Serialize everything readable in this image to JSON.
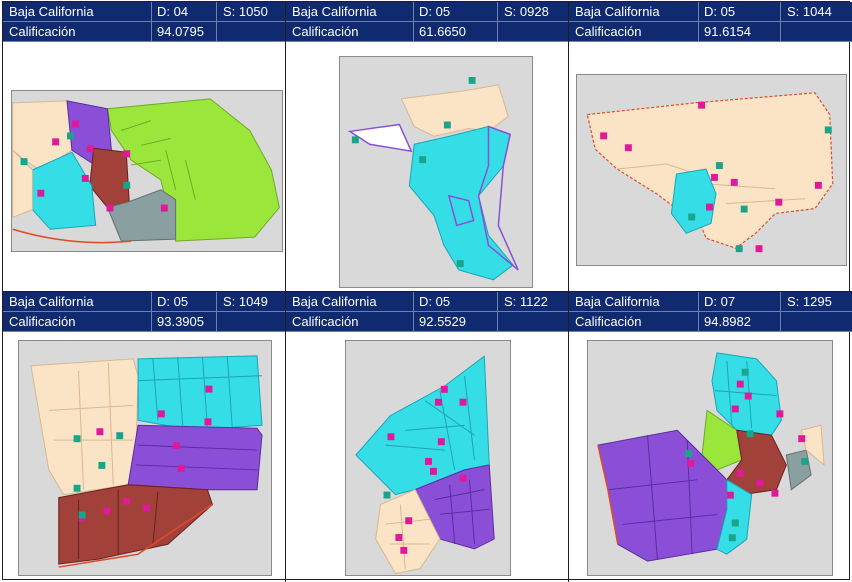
{
  "cards": [
    {
      "state": "Baja California",
      "district": "D: 04",
      "section": "S: 1050",
      "score_label": "Calificación",
      "score": "94.0795"
    },
    {
      "state": "Baja California",
      "district": "D: 05",
      "section": "S: 0928",
      "score_label": "Calificación",
      "score": "61.6650"
    },
    {
      "state": "Baja California",
      "district": "D: 05",
      "section": "S: 1044",
      "score_label": "Calificación",
      "score": "91.6154"
    },
    {
      "state": "Baja California",
      "district": "D: 05",
      "section": "S: 1049",
      "score_label": "Calificación",
      "score": "93.3905"
    },
    {
      "state": "Baja California",
      "district": "D: 05",
      "section": "S: 1122",
      "score_label": "Calificación",
      "score": "92.5529"
    },
    {
      "state": "Baja California",
      "district": "D: 07",
      "section": "S: 1295",
      "score_label": "Calificación",
      "score": "94.8982"
    }
  ],
  "colors": {
    "header_bg": "#0f2a6e",
    "peach": "#fbe3c6",
    "purple": "#8a4fd6",
    "cyan": "#35dde6",
    "brown": "#a2403a",
    "green": "#9ae63a",
    "gray": "#8aa0a0",
    "marker_c": "#e0189a",
    "marker_e": "#1aa58a"
  },
  "markers": {
    "casilla": "C",
    "escuela": "E"
  }
}
